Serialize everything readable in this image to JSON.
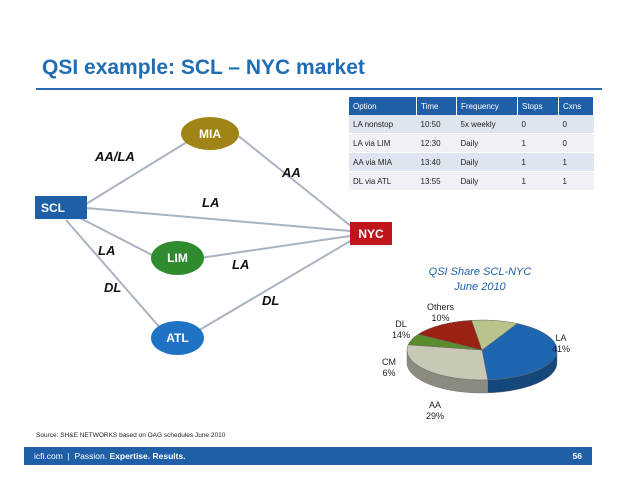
{
  "slide": {
    "title": "QSI example: SCL – NYC market",
    "source": "Source: SH&E NETWORKS based on OAG schedules June 2010",
    "footer_brand": "icfi.com",
    "footer_sep": "|",
    "footer_tagline_1": "Passion.",
    "footer_tagline_2": "Expertise. Results.",
    "page_number": "56",
    "accent_color": "#1f5fa8"
  },
  "network": {
    "nodes": {
      "scl": {
        "label": "SCL",
        "color": "#1f5fa8"
      },
      "mia": {
        "label": "MIA",
        "color": "#a08415"
      },
      "lim": {
        "label": "LIM",
        "color": "#2e8b2e"
      },
      "atl": {
        "label": "ATL",
        "color": "#1f72c4"
      },
      "nyc": {
        "label": "NYC",
        "color": "#c0151b"
      }
    },
    "edge_labels": {
      "scl_mia": "AA/LA",
      "mia_nyc": "AA",
      "scl_nyc": "LA",
      "scl_lim": "LA",
      "lim_nyc": "LA",
      "scl_atl": "DL",
      "atl_nyc": "DL"
    }
  },
  "options_table": {
    "headers": [
      "Option",
      "Time",
      "Frequency",
      "Stops",
      "Cxns"
    ],
    "rows": [
      [
        "LA nonstop",
        "10:50",
        "5x weekly",
        "0",
        "0"
      ],
      [
        "LA via LIM",
        "12:30",
        "Daily",
        "1",
        "0"
      ],
      [
        "AA via MIA",
        "13:40",
        "Daily",
        "1",
        "1"
      ],
      [
        "DL via ATL",
        "13:55",
        "Daily",
        "1",
        "1"
      ]
    ]
  },
  "chart_data": {
    "type": "pie",
    "title": "QSI Share SCL-NYC",
    "subtitle": "June 2010",
    "slices": [
      {
        "name": "LA",
        "value": 41,
        "label": "41%",
        "color": "#1f66b0"
      },
      {
        "name": "AA",
        "value": 29,
        "label": "29%",
        "color": "#c9c7b6"
      },
      {
        "name": "CM",
        "value": 6,
        "label": "6%",
        "color": "#5b8c2c"
      },
      {
        "name": "DL",
        "value": 14,
        "label": "14%",
        "color": "#9a2212"
      },
      {
        "name": "Others",
        "value": 10,
        "label": "10%",
        "color": "#b9c48c"
      }
    ]
  }
}
